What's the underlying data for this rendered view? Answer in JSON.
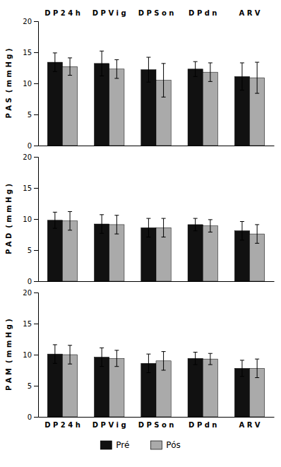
{
  "chart_data": [
    {
      "type": "bar",
      "categories": [
        "D P 2 4 h",
        "D P V i g",
        "D P S o n",
        "D P d n",
        "A R V"
      ],
      "ylabel": "P A S  ( m m H g )",
      "series": [
        {
          "name": "Pré",
          "color": "#111111",
          "values": [
            13.4,
            13.2,
            12.2,
            12.3,
            11.1
          ],
          "errors": [
            1.5,
            2.0,
            2.0,
            1.2,
            2.2
          ]
        },
        {
          "name": "Pós",
          "color": "#aaaaaa",
          "values": [
            12.7,
            12.3,
            10.5,
            11.8,
            10.9
          ],
          "errors": [
            1.4,
            1.5,
            2.7,
            1.5,
            2.5
          ]
        }
      ],
      "ylim": [
        0,
        20
      ],
      "yticks": [
        0,
        5,
        10,
        15,
        20
      ]
    },
    {
      "type": "bar",
      "categories": [
        null,
        null,
        null,
        null,
        null
      ],
      "ylabel": "P A D  ( m m H g )",
      "series": [
        {
          "name": "Pré",
          "color": "#111111",
          "values": [
            9.8,
            9.2,
            8.6,
            9.1,
            8.1
          ],
          "errors": [
            1.3,
            1.5,
            1.5,
            1.0,
            1.5
          ]
        },
        {
          "name": "Pós",
          "color": "#aaaaaa",
          "values": [
            9.7,
            9.1,
            8.6,
            8.9,
            7.6
          ],
          "errors": [
            1.5,
            1.5,
            1.5,
            1.0,
            1.5
          ]
        }
      ],
      "ylim": [
        0,
        20
      ],
      "yticks": [
        0,
        5,
        10,
        15,
        20
      ]
    },
    {
      "type": "bar",
      "categories": [
        "D P 2 4 h",
        "D P V i g",
        "D P S o n",
        "D P d n",
        "A R V"
      ],
      "ylabel": "P A M  ( m m H g )",
      "series": [
        {
          "name": "Pré",
          "color": "#111111",
          "values": [
            10.1,
            9.6,
            8.6,
            9.4,
            7.8
          ],
          "errors": [
            1.5,
            1.5,
            1.5,
            1.0,
            1.3
          ]
        },
        {
          "name": "Pós",
          "color": "#aaaaaa",
          "values": [
            10.0,
            9.4,
            9.0,
            9.3,
            7.8
          ],
          "errors": [
            1.5,
            1.3,
            1.5,
            0.9,
            1.5
          ]
        }
      ],
      "ylim": [
        0,
        20
      ],
      "yticks": [
        0,
        5,
        10,
        15,
        20
      ],
      "legend": "bottom"
    }
  ]
}
